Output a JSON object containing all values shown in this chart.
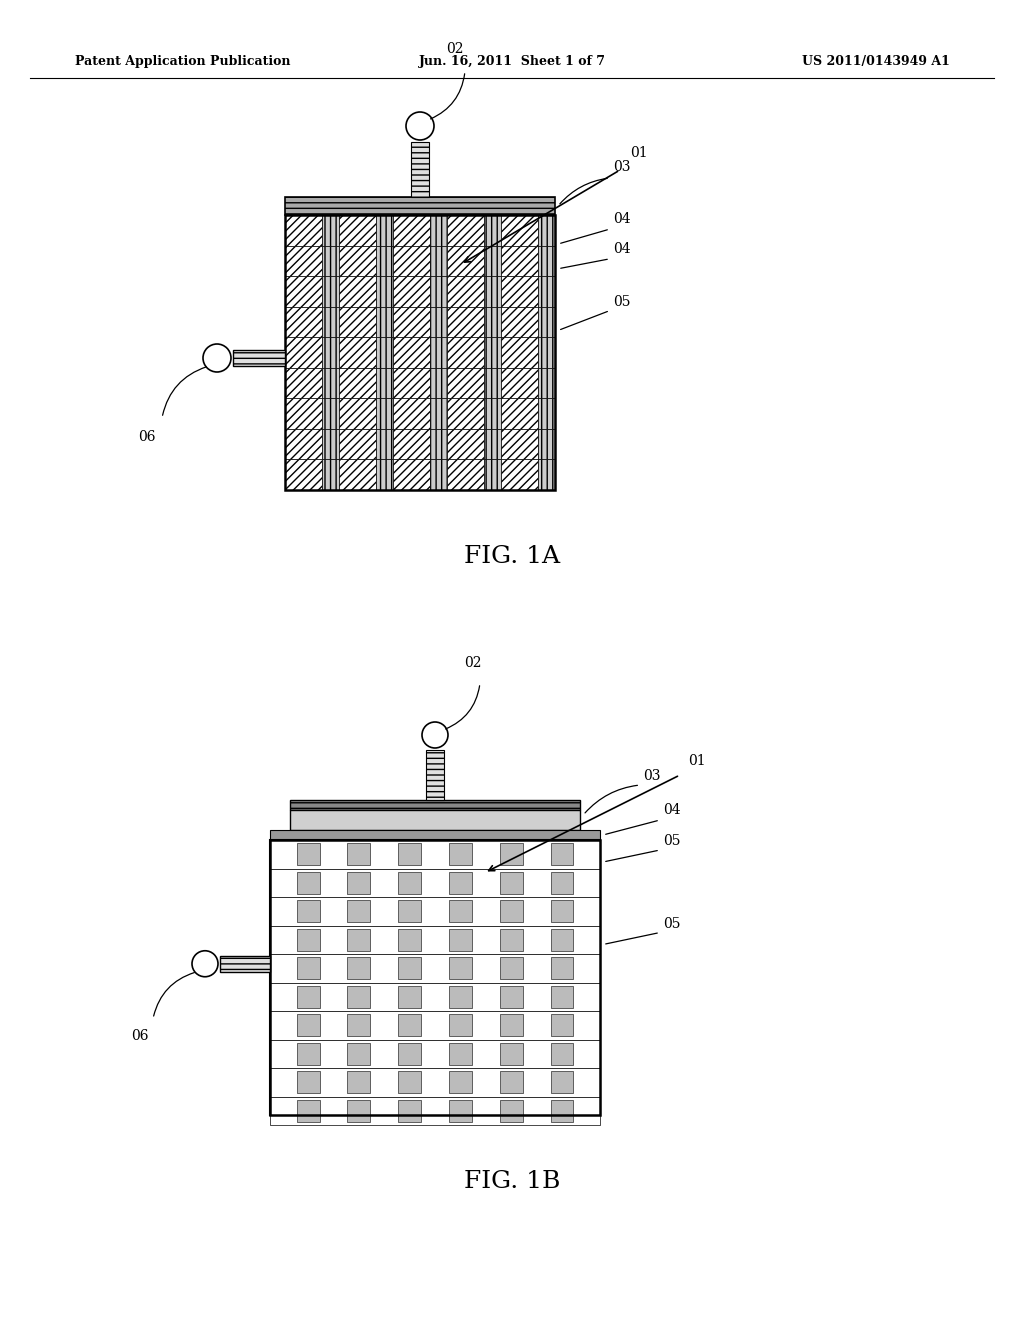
{
  "bg_color": "#ffffff",
  "header_text_left": "Patent Application Publication",
  "header_text_mid": "Jun. 16, 2011  Sheet 1 of 7",
  "header_text_right": "US 2011/0143949 A1",
  "fig1a_label": "FIG. 1A",
  "fig1b_label": "FIG. 1B"
}
